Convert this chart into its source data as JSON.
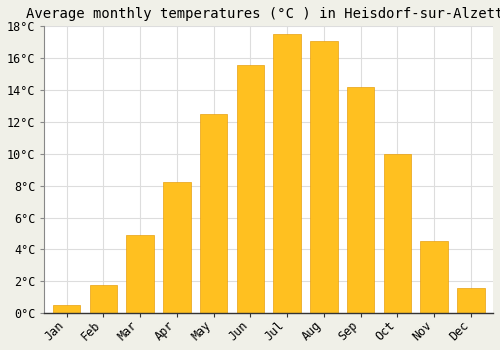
{
  "title": "Average monthly temperatures (°C ) in Heisdorf-sur-Alzette",
  "months": [
    "Jan",
    "Feb",
    "Mar",
    "Apr",
    "May",
    "Jun",
    "Jul",
    "Aug",
    "Sep",
    "Oct",
    "Nov",
    "Dec"
  ],
  "values": [
    0.5,
    1.8,
    4.9,
    8.2,
    12.5,
    15.6,
    17.5,
    17.1,
    14.2,
    10.0,
    4.5,
    1.6
  ],
  "bar_color": "#FFC020",
  "bar_edge_color": "#E8A010",
  "plot_background_color": "#FFFFFF",
  "fig_background_color": "#F0F0E8",
  "grid_color": "#DDDDDD",
  "ylim": [
    0,
    18
  ],
  "yticks": [
    0,
    2,
    4,
    6,
    8,
    10,
    12,
    14,
    16,
    18
  ],
  "title_fontsize": 10,
  "tick_fontsize": 8.5,
  "font_family": "monospace",
  "bar_width": 0.75
}
